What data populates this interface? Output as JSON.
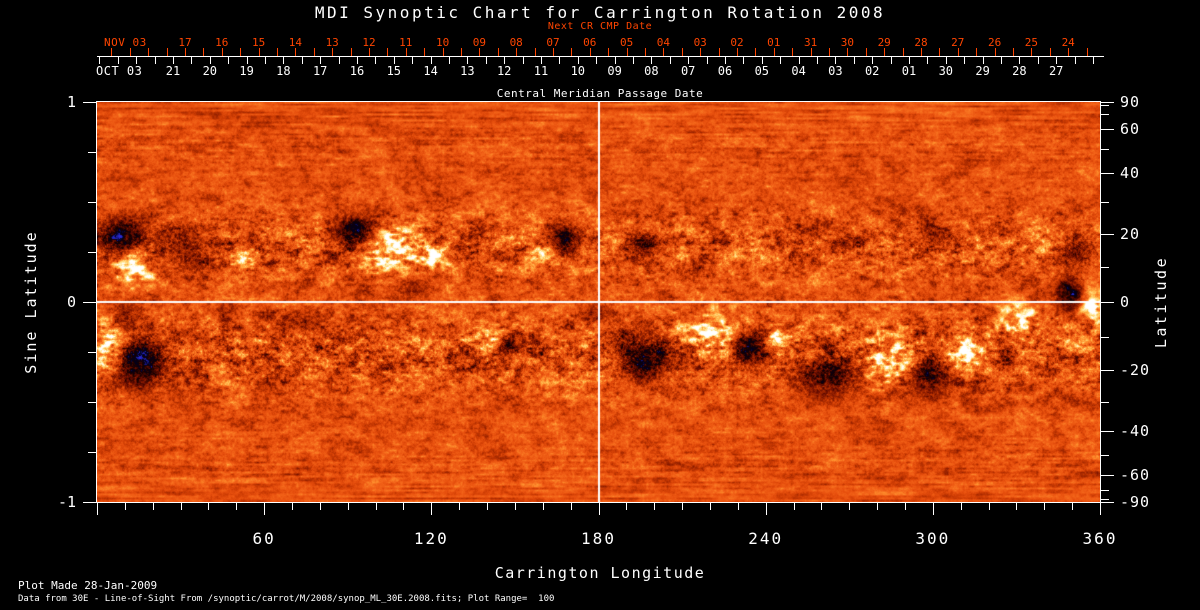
{
  "title": "MDI Synoptic Chart for Carrington Rotation 2008",
  "colors": {
    "background": "#000000",
    "foreground": "#ffffff",
    "accent_red": "#ff4500"
  },
  "footer": {
    "line1": "Plot Made 28-Jan-2009",
    "line2": "Data from 30E - Line-of-Sight From /synoptic/carrot/M/2008/synop_ML_30E.2008.fits; Plot Range=  100"
  },
  "chart_data": {
    "type": "heatmap",
    "title": "MDI Synoptic Chart for Carrington Rotation 2008",
    "plot_range": 100,
    "x_axis": {
      "label": "Carrington Longitude",
      "min": 0,
      "max": 360,
      "major_ticks": [
        60,
        120,
        180,
        240,
        300,
        360
      ],
      "minor_step": 10
    },
    "y_axis_left": {
      "label": "Sine Latitude",
      "min": -1,
      "max": 1,
      "major_ticks": [
        "1",
        "0",
        "-1"
      ],
      "minor_ticks": [
        0.75,
        0.5,
        0.25,
        -0.25,
        -0.5,
        -0.75
      ]
    },
    "y_axis_right": {
      "label": "Latitude",
      "major_ticks": [
        90,
        60,
        40,
        20,
        0,
        -20,
        -40,
        -60,
        -90
      ],
      "minor_ticks": [
        80,
        70,
        50,
        30,
        10,
        -10,
        -30,
        -50,
        -70,
        -80
      ]
    },
    "top_axis_next_cr": {
      "label": "Next CR CMP Date",
      "month_label": "NOV 03",
      "color": "#ff4500",
      "days": [
        "17",
        "16",
        "15",
        "14",
        "13",
        "12",
        "11",
        "10",
        "09",
        "08",
        "07",
        "06",
        "05",
        "04",
        "03",
        "02",
        "01",
        "31",
        "30",
        "29",
        "28",
        "27",
        "26",
        "25",
        "24"
      ]
    },
    "top_axis_cmp": {
      "label": "Central Meridian Passage Date",
      "month_label": "OCT 03",
      "days": [
        "21",
        "20",
        "19",
        "18",
        "17",
        "16",
        "15",
        "14",
        "13",
        "12",
        "11",
        "10",
        "09",
        "08",
        "07",
        "06",
        "05",
        "04",
        "03",
        "02",
        "01",
        "30",
        "29",
        "28",
        "27"
      ]
    },
    "crosshair": {
      "longitude": 180,
      "latitude": 0
    },
    "palette": [
      [
        -105,
        "#2a2ad0"
      ],
      [
        -95,
        "#2222b4"
      ],
      [
        -80,
        "#00001e"
      ],
      [
        -60,
        "#160000"
      ],
      [
        -38,
        "#6e0e00"
      ],
      [
        -22,
        "#a52800"
      ],
      [
        -10,
        "#cf3d04"
      ],
      [
        0,
        "#e8500e"
      ],
      [
        12,
        "#f4661a"
      ],
      [
        28,
        "#ff9430"
      ],
      [
        45,
        "#ffc95e"
      ],
      [
        62,
        "#ffefae"
      ],
      [
        78,
        "#ffffff"
      ],
      [
        105,
        "#ffffff"
      ]
    ],
    "active_regions": [
      {
        "lon": 9,
        "slat": 0.33,
        "rx": 9,
        "ry": 0.1,
        "amp": -95
      },
      {
        "lon": 13,
        "slat": 0.17,
        "rx": 8,
        "ry": 0.1,
        "amp": 85
      },
      {
        "lon": 30,
        "slat": 0.26,
        "rx": 9,
        "ry": 0.1,
        "amp": -55
      },
      {
        "lon": 52,
        "slat": 0.22,
        "rx": 4,
        "ry": 0.05,
        "amp": 65
      },
      {
        "lon": 75,
        "slat": -0.1,
        "rx": 6,
        "ry": 0.05,
        "amp": -30
      },
      {
        "lon": 93,
        "slat": 0.36,
        "rx": 8,
        "ry": 0.09,
        "amp": -85
      },
      {
        "lon": 105,
        "slat": 0.27,
        "rx": 9,
        "ry": 0.11,
        "amp": 90
      },
      {
        "lon": 121,
        "slat": 0.22,
        "rx": 5,
        "ry": 0.06,
        "amp": 70
      },
      {
        "lon": 113,
        "slat": 0.08,
        "rx": 8,
        "ry": 0.06,
        "amp": -45
      },
      {
        "lon": 160,
        "slat": 0.24,
        "rx": 4,
        "ry": 0.05,
        "amp": 60
      },
      {
        "lon": 167,
        "slat": 0.31,
        "rx": 7,
        "ry": 0.08,
        "amp": -80
      },
      {
        "lon": 178,
        "slat": -0.05,
        "rx": 5,
        "ry": 0.05,
        "amp": -35
      },
      {
        "lon": 196,
        "slat": 0.3,
        "rx": 7,
        "ry": 0.07,
        "amp": -50
      },
      {
        "lon": 268,
        "slat": 0.3,
        "rx": 5,
        "ry": 0.05,
        "amp": -35
      },
      {
        "lon": 300,
        "slat": 0.33,
        "rx": 6,
        "ry": 0.06,
        "amp": -40
      },
      {
        "lon": 352,
        "slat": 0.27,
        "rx": 6,
        "ry": 0.08,
        "amp": -60
      },
      {
        "lon": 3,
        "slat": -0.2,
        "rx": 6,
        "ry": 0.11,
        "amp": 90
      },
      {
        "lon": 15,
        "slat": -0.3,
        "rx": 9,
        "ry": 0.14,
        "amp": -90
      },
      {
        "lon": 10,
        "slat": -0.05,
        "rx": 5,
        "ry": 0.06,
        "amp": -50
      },
      {
        "lon": 140,
        "slat": -0.17,
        "rx": 4,
        "ry": 0.05,
        "amp": 75
      },
      {
        "lon": 147,
        "slat": -0.23,
        "rx": 4,
        "ry": 0.06,
        "amp": -70
      },
      {
        "lon": 196,
        "slat": -0.27,
        "rx": 10,
        "ry": 0.13,
        "amp": -75
      },
      {
        "lon": 221,
        "slat": -0.15,
        "rx": 10,
        "ry": 0.11,
        "amp": 95
      },
      {
        "lon": 233,
        "slat": -0.23,
        "rx": 7,
        "ry": 0.1,
        "amp": -90
      },
      {
        "lon": 244,
        "slat": -0.18,
        "rx": 4,
        "ry": 0.05,
        "amp": 75
      },
      {
        "lon": 262,
        "slat": -0.38,
        "rx": 10,
        "ry": 0.11,
        "amp": -80
      },
      {
        "lon": 285,
        "slat": -0.29,
        "rx": 9,
        "ry": 0.11,
        "amp": 90
      },
      {
        "lon": 298,
        "slat": -0.36,
        "rx": 7,
        "ry": 0.11,
        "amp": -85
      },
      {
        "lon": 313,
        "slat": -0.24,
        "rx": 6,
        "ry": 0.08,
        "amp": 80
      },
      {
        "lon": 326,
        "slat": -0.28,
        "rx": 4,
        "ry": 0.07,
        "amp": -60
      },
      {
        "lon": 331,
        "slat": -0.09,
        "rx": 7,
        "ry": 0.08,
        "amp": 85
      },
      {
        "lon": 349,
        "slat": 0.04,
        "rx": 5,
        "ry": 0.08,
        "amp": -95
      },
      {
        "lon": 357,
        "slat": -0.03,
        "rx": 4,
        "ry": 0.08,
        "amp": 100
      }
    ]
  }
}
